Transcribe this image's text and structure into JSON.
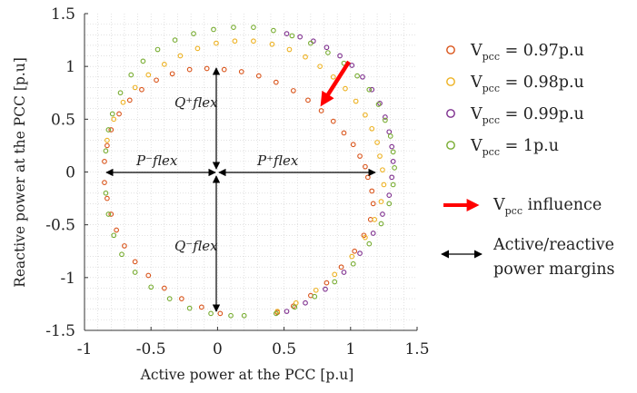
{
  "chart_data": {
    "type": "scatter",
    "title": "",
    "xlabel": "Active power at the PCC [p.u]",
    "ylabel": "Reactive power at the PCC [p.u]",
    "xlim": [
      -1,
      1.5
    ],
    "ylim": [
      -1.5,
      1.5
    ],
    "xticks": [
      "-1",
      "-0.5",
      "0",
      "0.5",
      "1",
      "1.5"
    ],
    "yticks": [
      "1.5",
      "1",
      "0.5",
      "0",
      "-0.5",
      "-1",
      "-1.5"
    ],
    "grid": "minor dotted",
    "legend_position": "right",
    "series": [
      {
        "name": "V_pcc = 0.97p.u",
        "color": "#d95319",
        "points": [
          [
            -0.85,
            0.1
          ],
          [
            -0.83,
            0.25
          ],
          [
            -0.8,
            0.4
          ],
          [
            -0.74,
            0.55
          ],
          [
            -0.66,
            0.68
          ],
          [
            -0.57,
            0.78
          ],
          [
            -0.46,
            0.87
          ],
          [
            -0.34,
            0.93
          ],
          [
            -0.21,
            0.97
          ],
          [
            -0.08,
            0.98
          ],
          [
            0.05,
            0.97
          ],
          [
            0.18,
            0.95
          ],
          [
            0.31,
            0.91
          ],
          [
            0.44,
            0.85
          ],
          [
            0.57,
            0.77
          ],
          [
            0.68,
            0.68
          ],
          [
            0.78,
            0.58
          ],
          [
            0.87,
            0.48
          ],
          [
            0.95,
            0.37
          ],
          [
            1.02,
            0.26
          ],
          [
            1.07,
            0.15
          ],
          [
            1.11,
            0.05
          ],
          [
            1.13,
            -0.05
          ],
          [
            1.16,
            -0.18
          ],
          [
            1.17,
            -0.3
          ],
          [
            1.15,
            -0.45
          ],
          [
            1.1,
            -0.6
          ],
          [
            1.03,
            -0.75
          ],
          [
            0.93,
            -0.9
          ],
          [
            0.82,
            -1.05
          ],
          [
            0.7,
            -1.17
          ],
          [
            0.57,
            -1.27
          ],
          [
            0.45,
            -1.33
          ],
          [
            -0.85,
            -0.1
          ],
          [
            -0.83,
            -0.25
          ],
          [
            -0.8,
            -0.4
          ],
          [
            -0.76,
            -0.55
          ],
          [
            -0.7,
            -0.7
          ],
          [
            -0.62,
            -0.85
          ],
          [
            -0.52,
            -0.98
          ],
          [
            -0.4,
            -1.1
          ],
          [
            -0.27,
            -1.2
          ],
          [
            -0.12,
            -1.28
          ],
          [
            0.02,
            -1.34
          ]
        ]
      },
      {
        "name": "V_pcc = 0.98p.u",
        "color": "#edb120",
        "points": [
          [
            -0.83,
            0.3
          ],
          [
            -0.78,
            0.5
          ],
          [
            -0.71,
            0.66
          ],
          [
            -0.62,
            0.8
          ],
          [
            -0.52,
            0.92
          ],
          [
            -0.4,
            1.02
          ],
          [
            -0.28,
            1.1
          ],
          [
            -0.15,
            1.17
          ],
          [
            -0.01,
            1.22
          ],
          [
            0.13,
            1.24
          ],
          [
            0.27,
            1.24
          ],
          [
            0.41,
            1.21
          ],
          [
            0.54,
            1.16
          ],
          [
            0.66,
            1.09
          ],
          [
            0.77,
            1.0
          ],
          [
            0.87,
            0.9
          ],
          [
            0.96,
            0.79
          ],
          [
            1.04,
            0.67
          ],
          [
            1.11,
            0.54
          ],
          [
            1.16,
            0.41
          ],
          [
            1.2,
            0.28
          ],
          [
            1.22,
            0.15
          ],
          [
            1.24,
            0.02
          ],
          [
            1.25,
            -0.12
          ],
          [
            1.23,
            -0.28
          ],
          [
            1.18,
            -0.45
          ],
          [
            1.11,
            -0.62
          ],
          [
            1.01,
            -0.8
          ],
          [
            0.88,
            -0.97
          ],
          [
            0.74,
            -1.12
          ],
          [
            0.59,
            -1.24
          ],
          [
            0.45,
            -1.32
          ]
        ]
      },
      {
        "name": "V_pcc = 0.99p.u",
        "color": "#7e2f8e",
        "points": [
          [
            0.52,
            1.31
          ],
          [
            0.62,
            1.28
          ],
          [
            0.72,
            1.24
          ],
          [
            0.82,
            1.18
          ],
          [
            0.92,
            1.1
          ],
          [
            1.01,
            1.01
          ],
          [
            1.09,
            0.9
          ],
          [
            1.16,
            0.78
          ],
          [
            1.22,
            0.65
          ],
          [
            1.26,
            0.52
          ],
          [
            1.29,
            0.38
          ],
          [
            1.31,
            0.24
          ],
          [
            1.32,
            0.1
          ],
          [
            1.31,
            -0.05
          ],
          [
            1.29,
            -0.22
          ],
          [
            1.24,
            -0.4
          ],
          [
            1.17,
            -0.58
          ],
          [
            1.07,
            -0.77
          ],
          [
            0.95,
            -0.95
          ],
          [
            0.81,
            -1.11
          ],
          [
            0.66,
            -1.24
          ],
          [
            0.52,
            -1.32
          ]
        ]
      },
      {
        "name": "V_pcc = 1p.u",
        "color": "#77ac30",
        "points": [
          [
            -0.84,
            0.2
          ],
          [
            -0.82,
            0.4
          ],
          [
            -0.79,
            0.55
          ],
          [
            -0.73,
            0.75
          ],
          [
            -0.65,
            0.92
          ],
          [
            -0.56,
            1.05
          ],
          [
            -0.45,
            1.16
          ],
          [
            -0.32,
            1.25
          ],
          [
            -0.18,
            1.31
          ],
          [
            -0.03,
            1.35
          ],
          [
            0.12,
            1.37
          ],
          [
            0.27,
            1.37
          ],
          [
            0.42,
            1.34
          ],
          [
            0.56,
            1.29
          ],
          [
            0.7,
            1.22
          ],
          [
            0.83,
            1.13
          ],
          [
            0.95,
            1.03
          ],
          [
            1.05,
            0.91
          ],
          [
            1.14,
            0.78
          ],
          [
            1.21,
            0.64
          ],
          [
            1.26,
            0.49
          ],
          [
            1.3,
            0.34
          ],
          [
            1.32,
            0.19
          ],
          [
            1.33,
            0.04
          ],
          [
            1.32,
            -0.12
          ],
          [
            1.29,
            -0.3
          ],
          [
            1.23,
            -0.49
          ],
          [
            1.14,
            -0.68
          ],
          [
            1.02,
            -0.87
          ],
          [
            0.88,
            -1.04
          ],
          [
            0.73,
            -1.18
          ],
          [
            0.58,
            -1.28
          ],
          [
            0.44,
            -1.34
          ],
          [
            -0.84,
            -0.2
          ],
          [
            -0.82,
            -0.4
          ],
          [
            -0.78,
            -0.6
          ],
          [
            -0.72,
            -0.78
          ],
          [
            -0.62,
            -0.95
          ],
          [
            -0.5,
            -1.09
          ],
          [
            -0.36,
            -1.2
          ],
          [
            -0.21,
            -1.29
          ],
          [
            -0.05,
            -1.34
          ],
          [
            0.1,
            -1.36
          ],
          [
            0.2,
            -1.36
          ]
        ]
      }
    ],
    "annotations": {
      "q_plus": "Q⁺flex",
      "q_minus": "Q⁻flex",
      "p_plus": "P⁺flex",
      "p_minus": "P⁻flex"
    },
    "legend_extra": {
      "influence_label": "V_pcc influence",
      "margins_label_line1": "Active/reactive",
      "margins_label_line2": "power margins"
    },
    "arrow_color": "#ff0000"
  }
}
